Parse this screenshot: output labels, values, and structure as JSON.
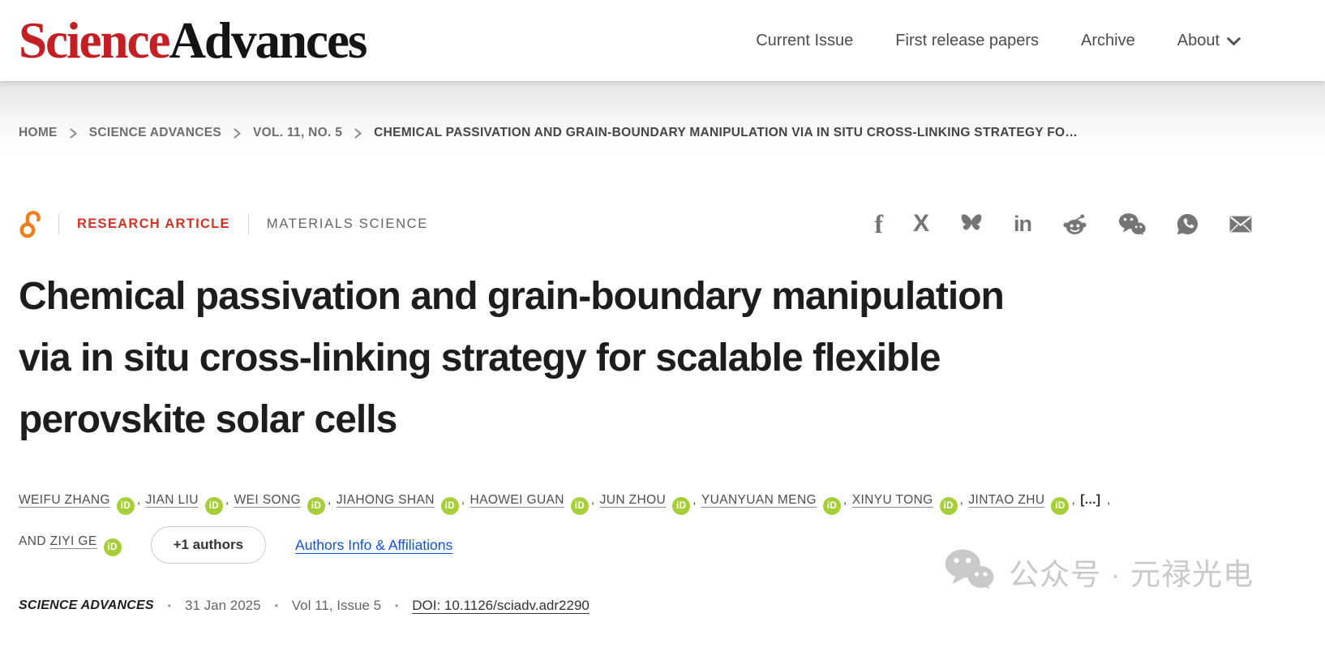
{
  "header": {
    "logo_part1": "Science",
    "logo_part2": "Advances",
    "nav": {
      "current_issue": "Current Issue",
      "first_release": "First release papers",
      "archive": "Archive",
      "about": "About"
    }
  },
  "breadcrumb": {
    "items": [
      "HOME",
      "SCIENCE ADVANCES",
      "VOL. 11, NO. 5",
      "CHEMICAL PASSIVATION AND GRAIN-BOUNDARY MANIPULATION VIA IN SITU CROSS-LINKING STRATEGY FO…"
    ]
  },
  "article": {
    "access_type": "open-access",
    "type_label": "RESEARCH ARTICLE",
    "subject_label": "MATERIALS SCIENCE",
    "title_lines": [
      "Chemical passivation and grain-boundary manipulation",
      "via in situ cross-linking strategy for scalable flexible",
      "perovskite solar cells"
    ],
    "share_icons": [
      "facebook",
      "x",
      "bluesky",
      "linkedin",
      "reddit",
      "wechat",
      "whatsapp",
      "email"
    ],
    "authors": {
      "orcid_label": "iD",
      "line1": [
        "WEIFU ZHANG",
        "JIAN LIU",
        "WEI SONG",
        "JIAHONG SHAN",
        "HAOWEI GUAN",
        "JUN ZHOU",
        "YUANYUAN MENG",
        "XINYU TONG",
        "JINTAO ZHU"
      ],
      "overflow_label": "[...]",
      "trailing_comma": ",",
      "and_label": "AND",
      "last_author": "ZIYI GE",
      "more_button_label": "+1 authors",
      "info_link_label": "Authors Info & Affiliations"
    },
    "meta": {
      "journal": "SCIENCE ADVANCES",
      "date": "31 Jan 2025",
      "issue": "Vol 11, Issue 5",
      "doi": "DOI: 10.1126/sciadv.adr2290"
    }
  },
  "watermark": {
    "label": "公众号 · 元禄光电"
  },
  "colors": {
    "brand_red": "#C32026",
    "type_red": "#D03224",
    "orcid_green": "#A6CE39",
    "open_access_orange": "#EF7F1A",
    "link_blue": "#1353D8",
    "icon_gray": "#757575",
    "watermark_gray": "#C9C9C9"
  }
}
